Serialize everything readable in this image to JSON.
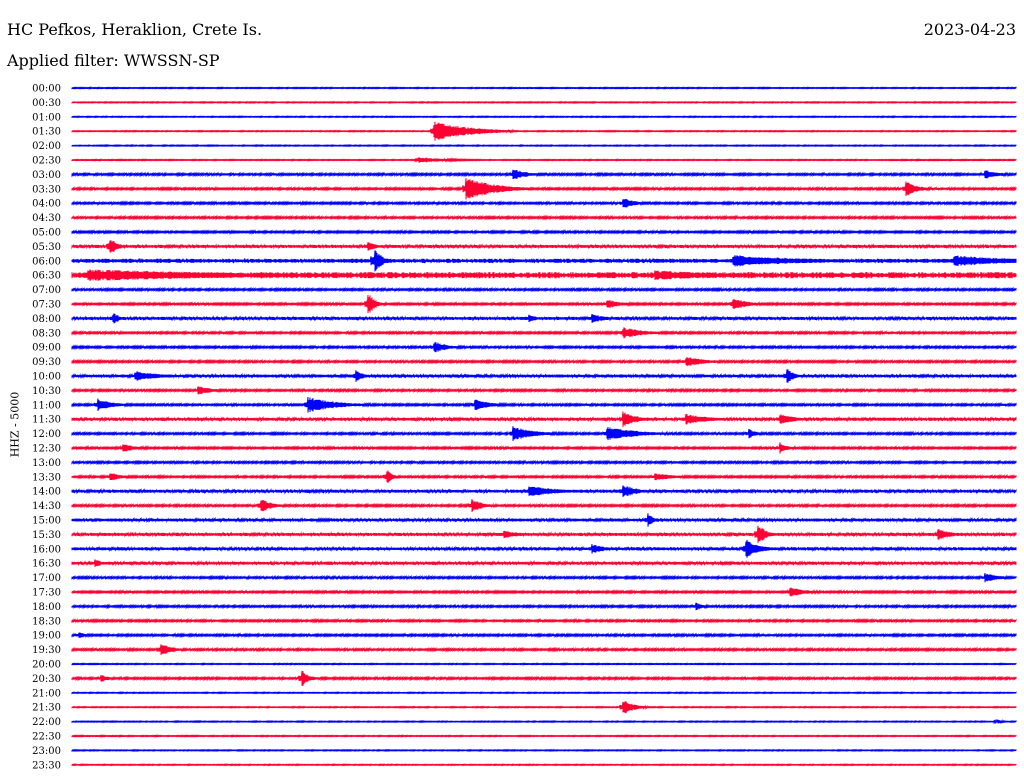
{
  "header": {
    "station": "HC Pefkos, Heraklion, Crete Is.",
    "date": "2023-04-23",
    "filter": "Applied filter: WWSSN-SP"
  },
  "channel_label": "HHZ - 5000",
  "colors": {
    "trace_a": "#0000ff",
    "trace_b": "#ff0033"
  },
  "chart_data": {
    "type": "line",
    "title": "HC Pefkos, Heraklion, Crete Is.",
    "ylabel": "HHZ - 5000",
    "xlabel": "",
    "grid": false,
    "row_labels": [
      "00:00",
      "00:30",
      "01:00",
      "01:30",
      "02:00",
      "02:30",
      "03:00",
      "03:30",
      "04:00",
      "04:30",
      "05:00",
      "05:30",
      "06:00",
      "06:30",
      "07:00",
      "07:30",
      "08:00",
      "08:30",
      "09:00",
      "09:30",
      "10:00",
      "10:30",
      "11:00",
      "11:30",
      "12:00",
      "12:30",
      "13:00",
      "13:30",
      "14:00",
      "14:30",
      "15:00",
      "15:30",
      "16:00",
      "16:30",
      "17:00",
      "17:30",
      "18:00",
      "18:30",
      "19:00",
      "19:30",
      "20:00",
      "20:30",
      "21:00",
      "21:30",
      "22:00",
      "22:30",
      "23:00",
      "23:30"
    ],
    "row_minutes": 30,
    "noise_level": [
      1,
      1,
      1,
      1,
      1,
      1,
      2,
      2,
      2,
      2,
      2,
      3,
      4,
      6,
      2,
      2,
      3,
      2,
      2,
      2,
      3,
      2,
      2,
      3,
      2,
      2,
      2,
      2,
      3,
      2,
      3,
      3,
      3,
      3,
      2,
      2,
      2,
      2,
      2,
      2,
      1,
      2,
      1,
      1,
      1,
      1,
      1,
      1
    ],
    "events": [
      {
        "row": 3,
        "minute": 11.5,
        "amp": 10,
        "dur": 2.5
      },
      {
        "row": 5,
        "minute": 11,
        "amp": 3,
        "dur": 2
      },
      {
        "row": 6,
        "minute": 14,
        "amp": 6,
        "dur": 1
      },
      {
        "row": 6,
        "minute": 29,
        "amp": 5,
        "dur": 1
      },
      {
        "row": 7,
        "minute": 12.5,
        "amp": 12,
        "dur": 2
      },
      {
        "row": 7,
        "minute": 26.5,
        "amp": 8,
        "dur": 0.8
      },
      {
        "row": 8,
        "minute": 17.5,
        "amp": 6,
        "dur": 0.8
      },
      {
        "row": 11,
        "minute": 1.2,
        "amp": 10,
        "dur": 0.5
      },
      {
        "row": 11,
        "minute": 9.4,
        "amp": 6,
        "dur": 0.5
      },
      {
        "row": 12,
        "minute": 9.6,
        "amp": 15,
        "dur": 0.5
      },
      {
        "row": 12,
        "minute": 21,
        "amp": 6,
        "dur": 5
      },
      {
        "row": 12,
        "minute": 28,
        "amp": 6,
        "dur": 4
      },
      {
        "row": 13,
        "minute": 0.5,
        "amp": 6,
        "dur": 12
      },
      {
        "row": 13,
        "minute": 18.5,
        "amp": 5,
        "dur": 5
      },
      {
        "row": 15,
        "minute": 9.4,
        "amp": 12,
        "dur": 0.5
      },
      {
        "row": 15,
        "minute": 17,
        "amp": 5,
        "dur": 1
      },
      {
        "row": 15,
        "minute": 21,
        "amp": 7,
        "dur": 1
      },
      {
        "row": 16,
        "minute": 1.3,
        "amp": 6,
        "dur": 0.5
      },
      {
        "row": 16,
        "minute": 14.5,
        "amp": 5,
        "dur": 0.5
      },
      {
        "row": 16,
        "minute": 16.5,
        "amp": 5,
        "dur": 1
      },
      {
        "row": 17,
        "minute": 17.5,
        "amp": 6,
        "dur": 1.5
      },
      {
        "row": 18,
        "minute": 11.5,
        "amp": 6,
        "dur": 1
      },
      {
        "row": 19,
        "minute": 19.5,
        "amp": 5,
        "dur": 1.5
      },
      {
        "row": 20,
        "minute": 2,
        "amp": 5,
        "dur": 2
      },
      {
        "row": 20,
        "minute": 9,
        "amp": 7,
        "dur": 0.5
      },
      {
        "row": 20,
        "minute": 22.7,
        "amp": 9,
        "dur": 0.5
      },
      {
        "row": 21,
        "minute": 4,
        "amp": 5,
        "dur": 1
      },
      {
        "row": 22,
        "minute": 0.8,
        "amp": 7,
        "dur": 1
      },
      {
        "row": 22,
        "minute": 7.5,
        "amp": 8,
        "dur": 2
      },
      {
        "row": 22,
        "minute": 12.8,
        "amp": 7,
        "dur": 1
      },
      {
        "row": 23,
        "minute": 17.5,
        "amp": 8,
        "dur": 1
      },
      {
        "row": 23,
        "minute": 19.5,
        "amp": 6,
        "dur": 1.5
      },
      {
        "row": 23,
        "minute": 22.5,
        "amp": 6,
        "dur": 1
      },
      {
        "row": 24,
        "minute": 14,
        "amp": 8,
        "dur": 1.5
      },
      {
        "row": 24,
        "minute": 17,
        "amp": 8,
        "dur": 2
      },
      {
        "row": 24,
        "minute": 21.5,
        "amp": 6,
        "dur": 0.5
      },
      {
        "row": 25,
        "minute": 1.6,
        "amp": 5,
        "dur": 0.8
      },
      {
        "row": 25,
        "minute": 22.5,
        "amp": 6,
        "dur": 0.5
      },
      {
        "row": 27,
        "minute": 1.2,
        "amp": 5,
        "dur": 0.8
      },
      {
        "row": 27,
        "minute": 10,
        "amp": 8,
        "dur": 0.4
      },
      {
        "row": 27,
        "minute": 18.5,
        "amp": 4,
        "dur": 1.5
      },
      {
        "row": 28,
        "minute": 14.5,
        "amp": 6,
        "dur": 2
      },
      {
        "row": 28,
        "minute": 17.5,
        "amp": 7,
        "dur": 1
      },
      {
        "row": 29,
        "minute": 6,
        "amp": 7,
        "dur": 0.8
      },
      {
        "row": 29,
        "minute": 12.7,
        "amp": 7,
        "dur": 0.8
      },
      {
        "row": 30,
        "minute": 18.3,
        "amp": 7,
        "dur": 0.4
      },
      {
        "row": 31,
        "minute": 13.7,
        "amp": 5,
        "dur": 1
      },
      {
        "row": 31,
        "minute": 21.8,
        "amp": 12,
        "dur": 0.5
      },
      {
        "row": 31,
        "minute": 27.5,
        "amp": 6,
        "dur": 1
      },
      {
        "row": 32,
        "minute": 21.4,
        "amp": 10,
        "dur": 1
      },
      {
        "row": 32,
        "minute": 16.5,
        "amp": 5,
        "dur": 1
      },
      {
        "row": 33,
        "minute": 0.7,
        "amp": 5,
        "dur": 0.5
      },
      {
        "row": 34,
        "minute": 29,
        "amp": 5,
        "dur": 1
      },
      {
        "row": 35,
        "minute": 22.8,
        "amp": 6,
        "dur": 1
      },
      {
        "row": 36,
        "minute": 19.8,
        "amp": 5,
        "dur": 0.5
      },
      {
        "row": 38,
        "minute": 0.2,
        "amp": 4,
        "dur": 0.5
      },
      {
        "row": 39,
        "minute": 2.8,
        "amp": 7,
        "dur": 0.8
      },
      {
        "row": 41,
        "minute": 0.9,
        "amp": 5,
        "dur": 0.5
      },
      {
        "row": 41,
        "minute": 7.3,
        "amp": 9,
        "dur": 0.5
      },
      {
        "row": 43,
        "minute": 17.5,
        "amp": 8,
        "dur": 0.8
      },
      {
        "row": 44,
        "minute": 29.4,
        "amp": 3,
        "dur": 0.3
      }
    ]
  }
}
